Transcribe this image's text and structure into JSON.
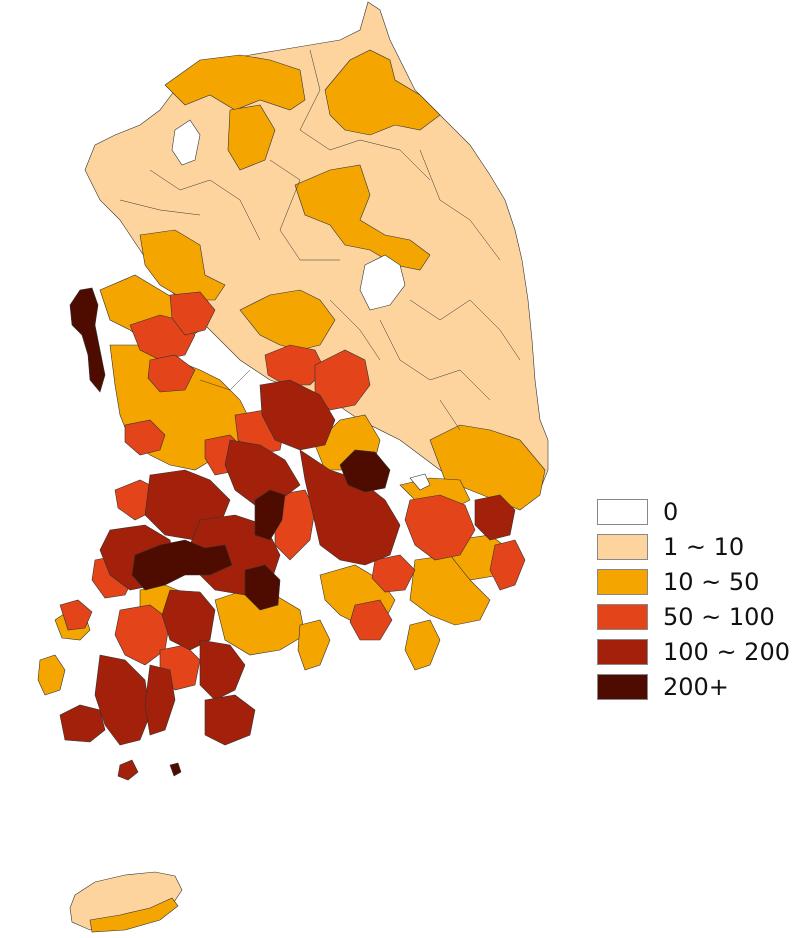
{
  "map": {
    "type": "choropleth",
    "region_style": {
      "stroke": "#333333"
    },
    "legend": {
      "placement": "right",
      "items": [
        {
          "label": "0",
          "color": "#ffffff"
        },
        {
          "label": "1 ~ 10",
          "color": "#fdd49e"
        },
        {
          "label": "10 ~ 50",
          "color": "#f5a500"
        },
        {
          "label": "50 ~ 100",
          "color": "#e4441a"
        },
        {
          "label": "100 ~ 200",
          "color": "#a3200a"
        },
        {
          "label": "200+",
          "color": "#4e0c00"
        }
      ]
    }
  }
}
